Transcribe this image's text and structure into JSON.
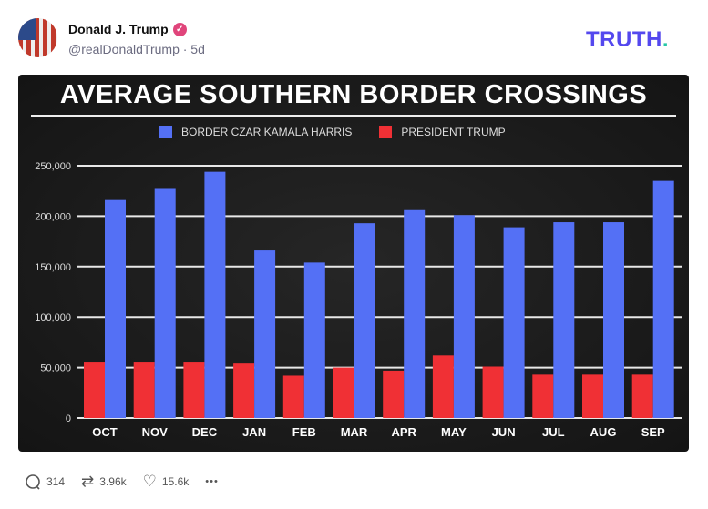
{
  "post": {
    "author": "Donald J. Trump",
    "handle": "@realDonaldTrump · 5d",
    "verified_color": "#e0457b"
  },
  "brand": {
    "logo": "TRUTH",
    "logo_dot": "."
  },
  "chart_data": {
    "type": "bar",
    "title": "AVERAGE SOUTHERN BORDER CROSSINGS",
    "categories": [
      "OCT",
      "NOV",
      "DEC",
      "JAN",
      "FEB",
      "MAR",
      "APR",
      "MAY",
      "JUN",
      "JUL",
      "AUG",
      "SEP"
    ],
    "series": [
      {
        "name": "PRESIDENT TRUMP",
        "color": "#f03035",
        "values": [
          55000,
          55000,
          55000,
          54000,
          42000,
          50000,
          47000,
          62000,
          51000,
          43000,
          43000,
          43000
        ]
      },
      {
        "name": "BORDER CZAR KAMALA HARRIS",
        "color": "#5470f5",
        "values": [
          216000,
          227000,
          244000,
          166000,
          154000,
          193000,
          206000,
          201000,
          189000,
          194000,
          194000,
          235000
        ]
      }
    ],
    "yticks": [
      "0",
      "50,000",
      "100,000",
      "150,000",
      "200,000",
      "250,000"
    ],
    "ylim": [
      0,
      250000
    ],
    "grid": true,
    "legend": "top"
  },
  "actions": {
    "replies": "314",
    "retruths": "3.96k",
    "likes": "15.6k",
    "more": "•••"
  }
}
